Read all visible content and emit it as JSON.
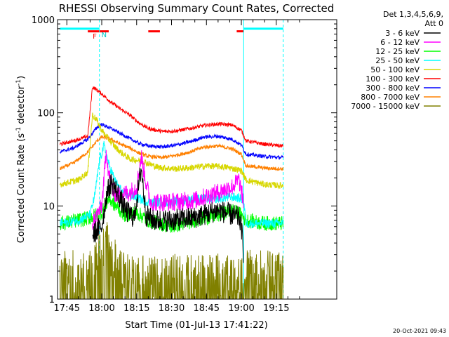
{
  "chart_data": {
    "type": "line",
    "title": "RHESSI Observing Summary Count Rates, Corrected",
    "xlabel": "Start Time (01-Jul-13 17:41:22)",
    "ylabel": "Corrected Count Rate (s",
    "ylabel_sup1": "-1",
    "ylabel_mid": " detector",
    "ylabel_sup2": "-1",
    "ylabel_end": ")",
    "y_scale": "log",
    "ylim": [
      1,
      1000
    ],
    "xlim_minutes": [
      -19,
      101
    ],
    "x_ticks": [
      {
        "label": "17:45",
        "min": -15
      },
      {
        "label": "18:00",
        "min": 0
      },
      {
        "label": "18:15",
        "min": 15
      },
      {
        "label": "18:30",
        "min": 30
      },
      {
        "label": "18:45",
        "min": 45
      },
      {
        "label": "19:00",
        "min": 60
      },
      {
        "label": "19:15",
        "min": 75
      }
    ],
    "y_ticks": [
      {
        "label": "1",
        "value": 1
      },
      {
        "label": "10",
        "value": 10
      },
      {
        "label": "100",
        "value": 100
      },
      {
        "label": "1000",
        "value": 1000
      }
    ],
    "legend": {
      "header1": "Det 1,3,4,5,6,9,",
      "header2": "Att 0",
      "placement": "right"
    },
    "footer": "20-Oct-2021 09:43",
    "markers": {
      "flags": [
        "F",
        "N"
      ],
      "night_periods": [
        [
          -18,
          -1
        ],
        [
          61,
          78
        ]
      ],
      "flare_segments": [
        [
          -6,
          3
        ],
        [
          20,
          25
        ],
        [
          58,
          61
        ]
      ],
      "vlines_min": [
        -1,
        61,
        78
      ]
    },
    "series": [
      {
        "name": "3 - 6 keV",
        "color": "#000000",
        "points": [
          [
            -4,
            4.8
          ],
          [
            -2,
            5.5
          ],
          [
            0,
            6
          ],
          [
            2,
            13
          ],
          [
            4,
            18
          ],
          [
            6,
            15
          ],
          [
            8,
            12
          ],
          [
            10,
            9
          ],
          [
            14,
            7.5
          ],
          [
            17,
            26
          ],
          [
            19,
            8
          ],
          [
            22,
            7
          ],
          [
            30,
            7
          ],
          [
            40,
            7.5
          ],
          [
            50,
            9
          ],
          [
            56,
            8
          ],
          [
            59,
            7.5
          ],
          [
            60,
            6
          ],
          [
            61,
            3
          ]
        ]
      },
      {
        "name": "6 - 12 keV",
        "color": "#ff00ff",
        "points": [
          [
            -4,
            6.5
          ],
          [
            -2,
            8
          ],
          [
            0,
            10
          ],
          [
            2,
            40
          ],
          [
            3,
            22
          ],
          [
            5,
            14
          ],
          [
            8,
            13
          ],
          [
            12,
            14
          ],
          [
            15,
            16
          ],
          [
            17,
            34
          ],
          [
            19,
            18
          ],
          [
            21,
            11
          ],
          [
            30,
            11
          ],
          [
            40,
            11.5
          ],
          [
            50,
            14
          ],
          [
            56,
            16
          ],
          [
            59,
            19
          ],
          [
            60,
            14
          ],
          [
            61,
            11
          ]
        ]
      },
      {
        "name": "12 - 25 keV",
        "color": "#00ff00",
        "points": [
          [
            -18,
            6.5
          ],
          [
            -10,
            7
          ],
          [
            -5,
            7.5
          ],
          [
            0,
            8.5
          ],
          [
            3,
            12
          ],
          [
            6,
            10
          ],
          [
            10,
            8
          ],
          [
            15,
            8.5
          ],
          [
            20,
            7
          ],
          [
            30,
            6
          ],
          [
            40,
            7
          ],
          [
            50,
            8
          ],
          [
            56,
            9
          ],
          [
            60,
            8
          ],
          [
            62,
            7
          ],
          [
            70,
            6.5
          ],
          [
            78,
            6.5
          ]
        ]
      },
      {
        "name": "25 - 50 keV",
        "color": "#00ffff",
        "points": [
          [
            -18,
            6.5
          ],
          [
            -10,
            7
          ],
          [
            -5,
            8
          ],
          [
            -3,
            13
          ],
          [
            -1,
            30
          ],
          [
            1,
            45
          ],
          [
            3,
            28
          ],
          [
            6,
            18
          ],
          [
            9,
            14
          ],
          [
            12,
            13
          ],
          [
            16,
            12
          ],
          [
            20,
            11
          ],
          [
            30,
            11
          ],
          [
            40,
            12
          ],
          [
            50,
            12
          ],
          [
            56,
            12.5
          ],
          [
            60,
            12
          ],
          [
            61,
            11
          ],
          [
            62,
            6.5
          ],
          [
            70,
            6.5
          ],
          [
            78,
            6.5
          ]
        ]
      },
      {
        "name": "50 - 100 keV",
        "color": "#d7d700",
        "points": [
          [
            -18,
            17
          ],
          [
            -10,
            19
          ],
          [
            -6,
            23
          ],
          [
            -4,
            95
          ],
          [
            -2,
            82
          ],
          [
            0,
            65
          ],
          [
            4,
            48
          ],
          [
            8,
            38
          ],
          [
            12,
            32
          ],
          [
            18,
            30
          ],
          [
            24,
            26
          ],
          [
            32,
            25
          ],
          [
            40,
            26
          ],
          [
            46,
            27
          ],
          [
            54,
            26
          ],
          [
            60,
            24
          ],
          [
            62,
            19
          ],
          [
            70,
            17
          ],
          [
            78,
            16.5
          ]
        ]
      },
      {
        "name": "100 - 300 keV",
        "color": "#ff0000",
        "points": [
          [
            -18,
            46
          ],
          [
            -12,
            50
          ],
          [
            -6,
            56
          ],
          [
            -4,
            190
          ],
          [
            -2,
            175
          ],
          [
            0,
            160
          ],
          [
            4,
            130
          ],
          [
            8,
            110
          ],
          [
            12,
            95
          ],
          [
            16,
            78
          ],
          [
            20,
            68
          ],
          [
            26,
            63
          ],
          [
            32,
            64
          ],
          [
            38,
            68
          ],
          [
            44,
            73
          ],
          [
            50,
            76
          ],
          [
            56,
            74
          ],
          [
            60,
            65
          ],
          [
            62,
            50
          ],
          [
            70,
            46
          ],
          [
            78,
            44
          ]
        ]
      },
      {
        "name": "300 - 800 keV",
        "color": "#0000ff",
        "points": [
          [
            -18,
            38
          ],
          [
            -12,
            42
          ],
          [
            -6,
            52
          ],
          [
            -2,
            70
          ],
          [
            0,
            75
          ],
          [
            4,
            68
          ],
          [
            8,
            60
          ],
          [
            12,
            53
          ],
          [
            16,
            47
          ],
          [
            20,
            44
          ],
          [
            26,
            43
          ],
          [
            32,
            45
          ],
          [
            38,
            49
          ],
          [
            44,
            55
          ],
          [
            50,
            56
          ],
          [
            56,
            52
          ],
          [
            60,
            45
          ],
          [
            62,
            36
          ],
          [
            70,
            34
          ],
          [
            78,
            33
          ]
        ]
      },
      {
        "name": "800 - 7000 keV",
        "color": "#ff8000",
        "points": [
          [
            -18,
            25
          ],
          [
            -12,
            29
          ],
          [
            -6,
            38
          ],
          [
            -2,
            50
          ],
          [
            0,
            55
          ],
          [
            4,
            52
          ],
          [
            8,
            46
          ],
          [
            12,
            42
          ],
          [
            16,
            37
          ],
          [
            20,
            34
          ],
          [
            26,
            33
          ],
          [
            32,
            35
          ],
          [
            38,
            38
          ],
          [
            44,
            43
          ],
          [
            50,
            44
          ],
          [
            56,
            41
          ],
          [
            60,
            36
          ],
          [
            62,
            27
          ],
          [
            70,
            25.5
          ],
          [
            78,
            25
          ]
        ]
      },
      {
        "name": "7000 - 15000 keV",
        "color": "#808000",
        "points": [
          [
            -18,
            1.9
          ],
          [
            -10,
            1.9
          ],
          [
            -5,
            1.9
          ],
          [
            -2,
            3.2
          ],
          [
            0,
            3.8
          ],
          [
            3,
            3.8
          ],
          [
            4,
            2.8
          ],
          [
            7,
            2.7
          ],
          [
            8,
            1.9
          ],
          [
            12,
            1.8
          ],
          [
            20,
            1.7
          ],
          [
            40,
            1.8
          ],
          [
            55,
            1.8
          ],
          [
            60,
            1.8
          ],
          [
            61,
            1
          ],
          [
            62,
            1.9
          ],
          [
            78,
            1.9
          ]
        ]
      }
    ]
  }
}
